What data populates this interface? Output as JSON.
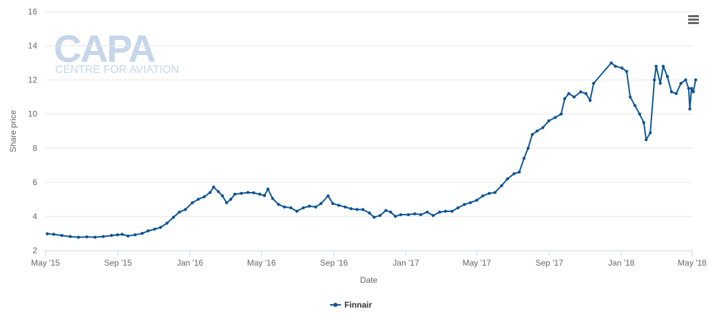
{
  "branding": {
    "logo_main": "CAPA",
    "logo_sub": "CENTRE FOR AVIATION",
    "logo_color": "#c5d6ea"
  },
  "menu": {
    "icon": "hamburger-icon"
  },
  "chart_data": {
    "type": "line",
    "title": "",
    "xlabel": "Date",
    "ylabel": "Share price",
    "x_ticks": [
      "May '15",
      "Sep '15",
      "Jan '16",
      "May '16",
      "Sep '16",
      "Jan '17",
      "May '17",
      "Sep '17",
      "Jan '18",
      "May '18"
    ],
    "x_tick_dates": [
      "2015-05-01",
      "2015-09-01",
      "2016-01-01",
      "2016-05-01",
      "2016-09-01",
      "2017-01-01",
      "2017-05-01",
      "2017-09-01",
      "2018-01-01",
      "2018-05-01"
    ],
    "y_ticks": [
      2,
      4,
      6,
      8,
      10,
      12,
      14,
      16
    ],
    "ylim": [
      2,
      16
    ],
    "xlim": [
      "2015-05-01",
      "2018-05-01"
    ],
    "grid": {
      "y": true,
      "x": false
    },
    "legend": {
      "position": "bottom-center"
    },
    "series": [
      {
        "name": "Finnair",
        "color": "#0b5394",
        "marker": "circle",
        "points": [
          [
            "2015-05-04",
            2.98
          ],
          [
            "2015-05-15",
            2.95
          ],
          [
            "2015-05-29",
            2.88
          ],
          [
            "2015-06-12",
            2.82
          ],
          [
            "2015-06-26",
            2.78
          ],
          [
            "2015-07-10",
            2.8
          ],
          [
            "2015-07-24",
            2.78
          ],
          [
            "2015-08-07",
            2.82
          ],
          [
            "2015-08-21",
            2.88
          ],
          [
            "2015-08-31",
            2.92
          ],
          [
            "2015-09-08",
            2.95
          ],
          [
            "2015-09-18",
            2.85
          ],
          [
            "2015-09-30",
            2.92
          ],
          [
            "2015-10-12",
            3.0
          ],
          [
            "2015-10-22",
            3.15
          ],
          [
            "2015-11-02",
            3.25
          ],
          [
            "2015-11-12",
            3.35
          ],
          [
            "2015-11-23",
            3.6
          ],
          [
            "2015-12-04",
            3.95
          ],
          [
            "2015-12-14",
            4.25
          ],
          [
            "2015-12-24",
            4.4
          ],
          [
            "2016-01-05",
            4.8
          ],
          [
            "2016-01-15",
            5.0
          ],
          [
            "2016-01-25",
            5.15
          ],
          [
            "2016-02-04",
            5.4
          ],
          [
            "2016-02-10",
            5.72
          ],
          [
            "2016-02-18",
            5.45
          ],
          [
            "2016-02-25",
            5.2
          ],
          [
            "2016-03-03",
            4.8
          ],
          [
            "2016-03-10",
            5.0
          ],
          [
            "2016-03-17",
            5.3
          ],
          [
            "2016-03-28",
            5.35
          ],
          [
            "2016-04-08",
            5.4
          ],
          [
            "2016-04-18",
            5.38
          ],
          [
            "2016-04-28",
            5.3
          ],
          [
            "2016-05-06",
            5.22
          ],
          [
            "2016-05-12",
            5.6
          ],
          [
            "2016-05-20",
            5.05
          ],
          [
            "2016-05-30",
            4.7
          ],
          [
            "2016-06-09",
            4.55
          ],
          [
            "2016-06-20",
            4.5
          ],
          [
            "2016-06-30",
            4.3
          ],
          [
            "2016-07-11",
            4.5
          ],
          [
            "2016-07-21",
            4.6
          ],
          [
            "2016-08-01",
            4.55
          ],
          [
            "2016-08-10",
            4.75
          ],
          [
            "2016-08-22",
            5.2
          ],
          [
            "2016-08-30",
            4.75
          ],
          [
            "2016-09-09",
            4.65
          ],
          [
            "2016-09-20",
            4.55
          ],
          [
            "2016-09-30",
            4.45
          ],
          [
            "2016-10-10",
            4.4
          ],
          [
            "2016-10-20",
            4.4
          ],
          [
            "2016-10-31",
            4.2
          ],
          [
            "2016-11-08",
            3.95
          ],
          [
            "2016-11-18",
            4.05
          ],
          [
            "2016-11-28",
            4.35
          ],
          [
            "2016-12-06",
            4.25
          ],
          [
            "2016-12-14",
            4.0
          ],
          [
            "2016-12-23",
            4.1
          ],
          [
            "2017-01-05",
            4.1
          ],
          [
            "2017-01-16",
            4.15
          ],
          [
            "2017-01-26",
            4.1
          ],
          [
            "2017-02-06",
            4.25
          ],
          [
            "2017-02-16",
            4.05
          ],
          [
            "2017-02-27",
            4.25
          ],
          [
            "2017-03-09",
            4.3
          ],
          [
            "2017-03-20",
            4.3
          ],
          [
            "2017-03-30",
            4.5
          ],
          [
            "2017-04-10",
            4.7
          ],
          [
            "2017-04-20",
            4.8
          ],
          [
            "2017-05-01",
            4.95
          ],
          [
            "2017-05-11",
            5.2
          ],
          [
            "2017-05-22",
            5.35
          ],
          [
            "2017-06-01",
            5.4
          ],
          [
            "2017-06-12",
            5.8
          ],
          [
            "2017-06-22",
            6.2
          ],
          [
            "2017-07-03",
            6.5
          ],
          [
            "2017-07-12",
            6.6
          ],
          [
            "2017-07-20",
            7.4
          ],
          [
            "2017-07-27",
            8.0
          ],
          [
            "2017-08-03",
            8.8
          ],
          [
            "2017-08-11",
            9.0
          ],
          [
            "2017-08-21",
            9.2
          ],
          [
            "2017-08-31",
            9.6
          ],
          [
            "2017-09-11",
            9.8
          ],
          [
            "2017-09-21",
            10.0
          ],
          [
            "2017-09-27",
            10.9
          ],
          [
            "2017-10-04",
            11.2
          ],
          [
            "2017-10-13",
            11.0
          ],
          [
            "2017-10-24",
            11.3
          ],
          [
            "2017-11-02",
            11.2
          ],
          [
            "2017-11-09",
            10.8
          ],
          [
            "2017-11-15",
            11.8
          ],
          [
            "2017-12-15",
            13.0
          ],
          [
            "2017-12-22",
            12.8
          ],
          [
            "2018-01-02",
            12.7
          ],
          [
            "2018-01-10",
            12.5
          ],
          [
            "2018-01-16",
            11.0
          ],
          [
            "2018-01-24",
            10.5
          ],
          [
            "2018-02-01",
            10.0
          ],
          [
            "2018-02-08",
            9.5
          ],
          [
            "2018-02-12",
            8.5
          ],
          [
            "2018-02-19",
            8.9
          ],
          [
            "2018-02-26",
            12.0
          ],
          [
            "2018-03-01",
            12.8
          ],
          [
            "2018-03-08",
            11.8
          ],
          [
            "2018-03-13",
            12.8
          ],
          [
            "2018-03-20",
            12.2
          ],
          [
            "2018-03-27",
            11.3
          ],
          [
            "2018-04-04",
            11.2
          ],
          [
            "2018-04-12",
            11.8
          ],
          [
            "2018-04-20",
            12.0
          ],
          [
            "2018-04-25",
            11.5
          ],
          [
            "2018-04-27",
            10.3
          ],
          [
            "2018-04-30",
            11.5
          ],
          [
            "2018-05-03",
            11.3
          ],
          [
            "2018-05-07",
            12.0
          ]
        ]
      }
    ]
  }
}
